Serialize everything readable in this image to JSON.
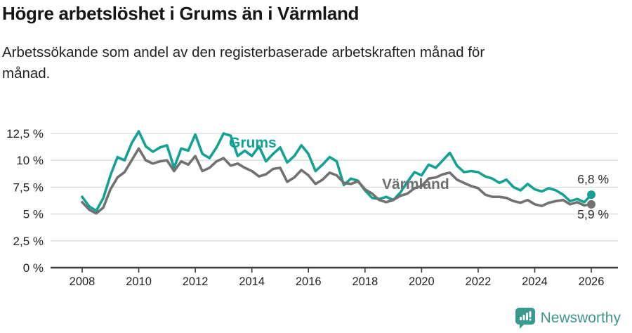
{
  "header": {},
  "chart_data": {
    "type": "line",
    "title": "Högre arbetslöshet i Grums än i Värmland",
    "subtitle": "Arbetssökande som andel av den registerbaserade arbetskraften månad för månad.",
    "xlabel": "",
    "ylabel": "",
    "grid": "horizontal",
    "legend_position": "inline-labels",
    "ylim": [
      0,
      13.2
    ],
    "xlim": [
      2007.9,
      2027
    ],
    "x_unit": "year (monthly series, sampled quarterly)",
    "x": [
      2008,
      2008.25,
      2008.5,
      2008.75,
      2009,
      2009.25,
      2009.5,
      2009.75,
      2010,
      2010.25,
      2010.5,
      2010.75,
      2011,
      2011.25,
      2011.5,
      2011.75,
      2012,
      2012.25,
      2012.5,
      2012.75,
      2013,
      2013.25,
      2013.5,
      2013.75,
      2014,
      2014.25,
      2014.5,
      2014.75,
      2015,
      2015.25,
      2015.5,
      2015.75,
      2016,
      2016.25,
      2016.5,
      2016.75,
      2017,
      2017.25,
      2017.5,
      2017.75,
      2018,
      2018.25,
      2018.5,
      2018.75,
      2019,
      2019.25,
      2019.5,
      2019.75,
      2020,
      2020.25,
      2020.5,
      2020.75,
      2021,
      2021.25,
      2021.5,
      2021.75,
      2022,
      2022.25,
      2022.5,
      2022.75,
      2023,
      2023.25,
      2023.5,
      2023.75,
      2024,
      2024.25,
      2024.5,
      2024.75,
      2025,
      2025.25,
      2025.5,
      2025.75,
      2026
    ],
    "series": [
      {
        "name": "Grums",
        "color": "#12a192",
        "end_label": "6,8 %",
        "end_value": 6.8,
        "values": [
          6.6,
          5.7,
          5.3,
          6.5,
          8.6,
          10.3,
          10.0,
          11.6,
          12.7,
          11.3,
          10.8,
          11.2,
          11.4,
          9.3,
          11.1,
          10.9,
          12.4,
          10.6,
          10.2,
          11.2,
          12.5,
          12.3,
          10.4,
          10.9,
          10.4,
          11.3,
          9.9,
          10.6,
          11.2,
          9.8,
          10.4,
          11.4,
          10.6,
          9.0,
          9.6,
          10.3,
          9.9,
          7.7,
          8.3,
          8.1,
          7.2,
          6.5,
          6.4,
          6.6,
          6.3,
          7.0,
          8.0,
          8.9,
          8.6,
          9.6,
          9.3,
          10.0,
          10.7,
          9.5,
          8.9,
          9.0,
          8.9,
          8.5,
          8.3,
          7.9,
          8.2,
          7.5,
          7.2,
          7.8,
          7.3,
          7.1,
          7.4,
          7.2,
          6.8,
          6.2,
          6.4,
          6.1,
          6.8
        ]
      },
      {
        "name": "Värmland",
        "color": "#717171",
        "end_label": "5,9 %",
        "end_value": 5.9,
        "values": [
          6.1,
          5.4,
          5.05,
          5.6,
          7.3,
          8.4,
          8.9,
          10.0,
          11.1,
          10.0,
          9.7,
          9.9,
          10.0,
          9.0,
          9.9,
          9.6,
          10.4,
          9.0,
          9.3,
          9.9,
          10.2,
          9.5,
          9.7,
          9.3,
          9.0,
          8.5,
          8.7,
          9.2,
          9.3,
          8.0,
          8.4,
          9.1,
          8.6,
          7.8,
          8.2,
          8.85,
          8.6,
          7.9,
          7.8,
          8.05,
          7.3,
          6.9,
          6.3,
          6.1,
          6.3,
          6.7,
          6.9,
          7.4,
          7.6,
          8.3,
          8.4,
          8.7,
          8.85,
          8.2,
          7.9,
          7.6,
          7.4,
          6.8,
          6.6,
          6.6,
          6.5,
          6.2,
          6.05,
          6.3,
          5.9,
          5.75,
          6.05,
          6.2,
          6.3,
          5.9,
          6.1,
          5.8,
          5.9
        ]
      }
    ],
    "y_ticks": [
      {
        "value": 0,
        "label": "0 %"
      },
      {
        "value": 2.5,
        "label": "2,5 %"
      },
      {
        "value": 5,
        "label": "5 %"
      },
      {
        "value": 7.5,
        "label": "7,5 %"
      },
      {
        "value": 10,
        "label": "10 %"
      },
      {
        "value": 12.5,
        "label": "12,5 %"
      }
    ],
    "x_ticks": [
      {
        "value": 2008,
        "label": "2008"
      },
      {
        "value": 2010,
        "label": "2010"
      },
      {
        "value": 2012,
        "label": "2012"
      },
      {
        "value": 2014,
        "label": "2014"
      },
      {
        "value": 2016,
        "label": "2016"
      },
      {
        "value": 2018,
        "label": "2018"
      },
      {
        "value": 2020,
        "label": "2020"
      },
      {
        "value": 2022,
        "label": "2022"
      },
      {
        "value": 2024,
        "label": "2024"
      },
      {
        "value": 2026,
        "label": "2026"
      }
    ]
  },
  "colors": {
    "grums": "#12a192",
    "varmland": "#717171",
    "grid": "#d9d9d9",
    "axis": "#3b3b3b",
    "brand_teal": "#3e968b"
  },
  "footer": {
    "brand": "Newsworthy"
  }
}
